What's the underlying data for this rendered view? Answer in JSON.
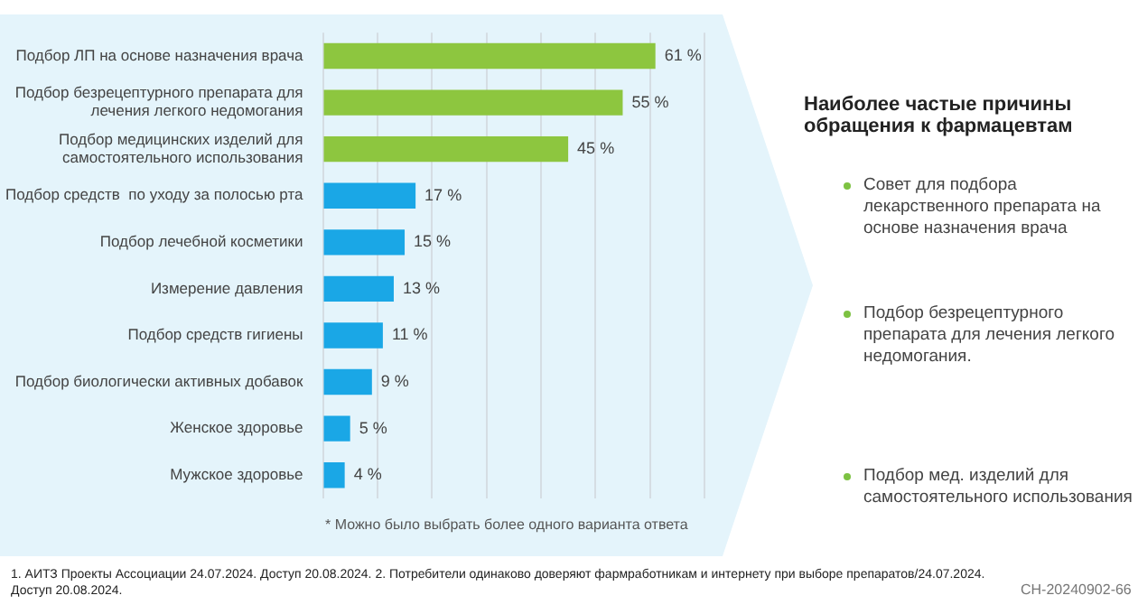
{
  "chart_data": {
    "type": "bar",
    "orientation": "horizontal",
    "categories": [
      "Подбор ЛП на основе назначения врача",
      "Подбор безрецептурного препарата для лечения легкого недомогания",
      "Подбор медицинских изделий для самостоятельного использования",
      "Подбор средств  по уходу за полосью рта",
      "Подбор лечебной косметики",
      "Измерение давления",
      "Подбор средств гигиены",
      "Подбор биологически активных добавок",
      "Женское здоровье",
      "Мужское здоровье"
    ],
    "values": [
      61,
      55,
      45,
      17,
      15,
      13,
      11,
      9,
      5,
      4
    ],
    "value_labels": [
      "61 %",
      "55 %",
      "45 %",
      "17 %",
      "15 %",
      "13 %",
      "11 %",
      "9 %",
      "5 %",
      "4 %"
    ],
    "colors": [
      "#8dc63f",
      "#8dc63f",
      "#8dc63f",
      "#1aa7e6",
      "#1aa7e6",
      "#1aa7e6",
      "#1aa7e6",
      "#1aa7e6",
      "#1aa7e6",
      "#1aa7e6"
    ],
    "xlim": [
      0,
      70
    ],
    "xticks": [
      {
        "value": 0,
        "label": null
      },
      {
        "value": 10,
        "label": null
      },
      {
        "value": 20,
        "label": null
      },
      {
        "value": 30,
        "label": null
      },
      {
        "value": 40,
        "label": null
      },
      {
        "value": 50,
        "label": null
      },
      {
        "value": 60,
        "label": null
      },
      {
        "value": 70,
        "label": null
      }
    ],
    "grid": "x",
    "tick_labels": "y",
    "legend": false,
    "annotations": [
      "* Можно было выбрать более одного варианта ответа",
      "Наиболее частые причины обращения к фармацевтам",
      "Совет для подбора лекарственного препарата на основе назначения врача",
      "Подбор безрецептурного препарата для лечения легкого недомогания.",
      "Подбор мед. изделий для самостоятельного использования",
      "1. АИТЗ Проекты Ассоциации 24.07.2024. Доступ 20.08.2024. 2. Потребители одинаково доверяют фармработникам и интернету при выборе препаратов/24.07.2024. Доступ 20.08.2024.",
      "CH-20240902-66"
    ]
  }
}
